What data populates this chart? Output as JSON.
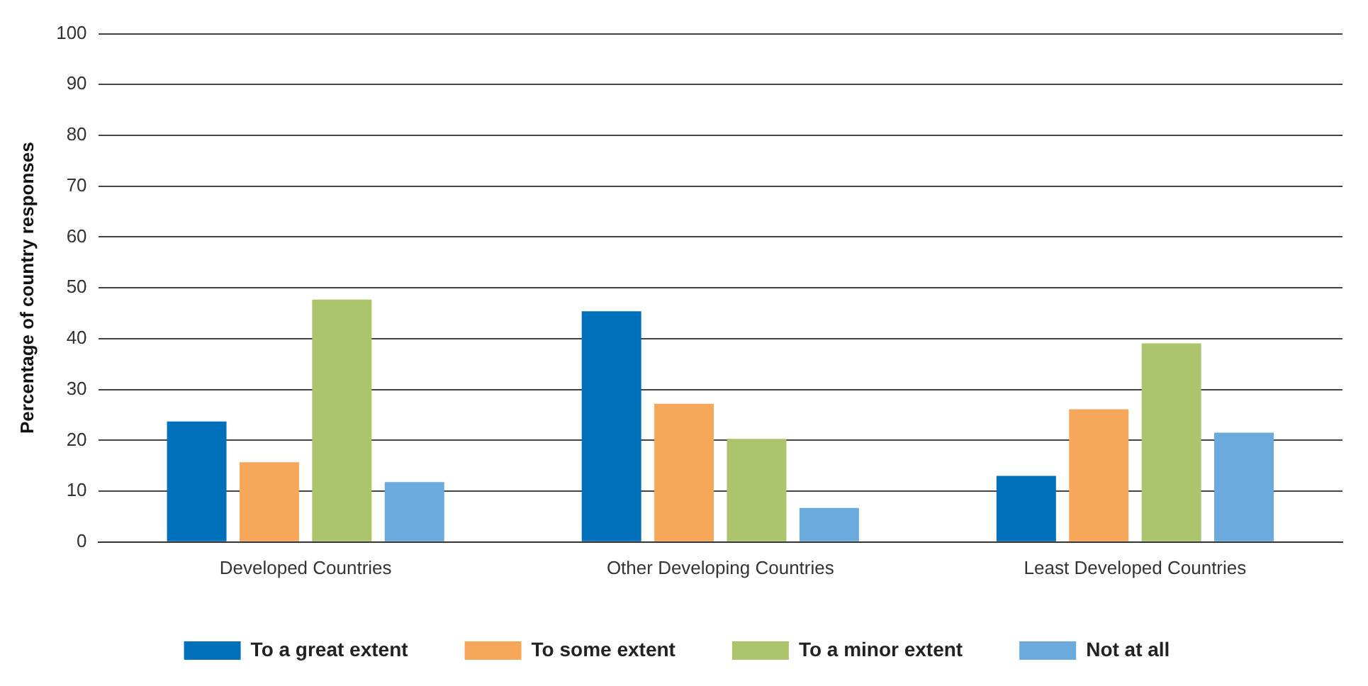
{
  "chart_data": {
    "type": "bar",
    "ylabel": "Percentage of country responses",
    "categories": [
      "Developed Countries",
      "Other Developing Countries",
      "Least Developed Countries"
    ],
    "series": [
      {
        "name": "To a great extent",
        "color": "#0070ba",
        "values": [
          23.7,
          45.4,
          13.0
        ]
      },
      {
        "name": "To some extent",
        "color": "#f7a75a",
        "values": [
          15.7,
          27.2,
          26.1
        ]
      },
      {
        "name": "To a minor extent",
        "color": "#acc46c",
        "values": [
          47.7,
          20.3,
          39.1
        ]
      },
      {
        "name": "Not at all",
        "color": "#6aaadc",
        "values": [
          11.8,
          6.7,
          21.5
        ]
      }
    ],
    "ylim": [
      0,
      100
    ],
    "yticks": [
      0,
      10,
      20,
      30,
      40,
      50,
      60,
      70,
      80,
      90,
      100
    ],
    "grid": "y",
    "legend": "bottom"
  }
}
